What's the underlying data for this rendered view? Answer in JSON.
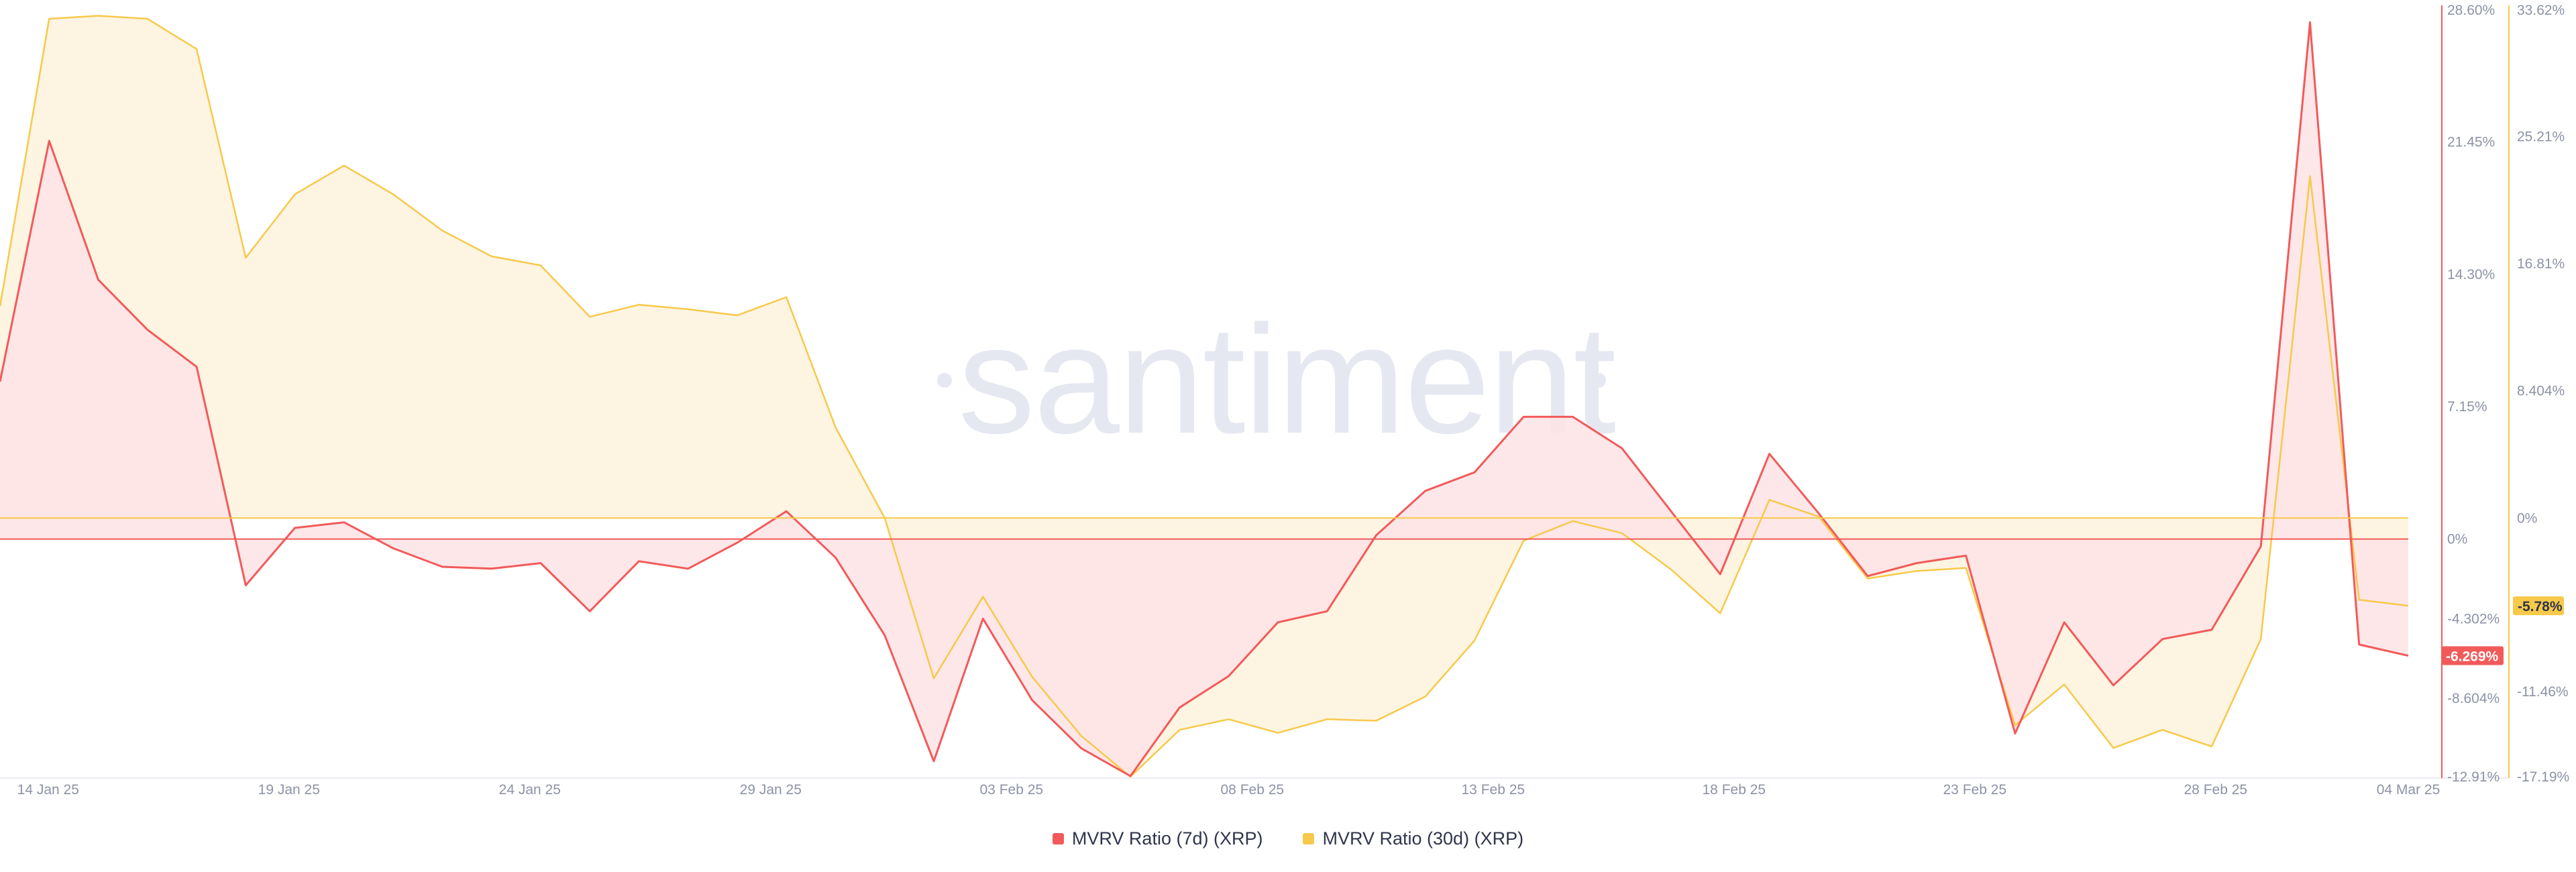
{
  "watermark": "santiment",
  "colors": {
    "series_7d": "#f25a5a",
    "series_30d": "#f7c94a",
    "fill_7d_pos": "#fde3e5",
    "fill_30d_pos": "#fdf4e2",
    "fill_neg_overlap": "#fde4d4",
    "grid": "#ececf2",
    "axis_text": "#8d93a6"
  },
  "legend": {
    "items": [
      {
        "label": "MVRV Ratio (7d) (XRP)",
        "color": "#f25a5a"
      },
      {
        "label": "MVRV Ratio (30d) (XRP)",
        "color": "#f7c94a"
      }
    ]
  },
  "chart_data": {
    "type": "area",
    "x_tick_labels": [
      "14 Jan 25",
      "19 Jan 25",
      "24 Jan 25",
      "29 Jan 25",
      "03 Feb 25",
      "08 Feb 25",
      "13 Feb 25",
      "18 Feb 25",
      "23 Feb 25",
      "28 Feb 25",
      "04 Mar 25"
    ],
    "x_start": "13 Jan 25",
    "x_end": "04 Mar 25",
    "y_left": {
      "series": "MVRV Ratio (7d) (XRP)",
      "range": [
        -12.91,
        28.6
      ],
      "ticks": [
        "28.60%",
        "21.45%",
        "14.30%",
        "7.15%",
        "0%",
        "-4.302%",
        "-8.604%",
        "-12.91%"
      ],
      "current_value_label": "-6.269%"
    },
    "y_right": {
      "series": "MVRV Ratio (30d) (XRP)",
      "range": [
        -17.19,
        33.62
      ],
      "ticks": [
        "33.62%",
        "25.21%",
        "16.81%",
        "8.404%",
        "0%",
        "-11.46%",
        "-17.19%"
      ],
      "current_value_label": "-5.78%"
    },
    "series": [
      {
        "name": "MVRV Ratio (7d) (XRP)",
        "axis": "left",
        "values": [
          8.5,
          21.5,
          14.0,
          11.3,
          9.3,
          -2.5,
          0.6,
          0.9,
          -0.5,
          -1.5,
          -1.6,
          -1.3,
          -3.9,
          -1.2,
          -1.6,
          -0.2,
          1.5,
          -1.0,
          -5.2,
          -12.0,
          -4.3,
          -8.7,
          -11.3,
          -12.8,
          -9.1,
          -7.4,
          -4.5,
          -3.9,
          0.2,
          2.6,
          3.6,
          6.6,
          6.6,
          4.9,
          1.5,
          -1.9,
          4.6,
          1.4,
          -2.0,
          -1.3,
          -0.9,
          -10.5,
          -4.5,
          -7.9,
          -5.4,
          -4.9,
          -0.4,
          27.9,
          -5.7,
          -6.3
        ]
      },
      {
        "name": "MVRV Ratio (30d) (XRP)",
        "axis": "right",
        "values": [
          14.0,
          33.0,
          33.2,
          33.0,
          31.0,
          17.2,
          21.4,
          23.3,
          21.4,
          19.0,
          17.3,
          16.7,
          13.3,
          14.1,
          13.8,
          13.4,
          14.6,
          6.0,
          0.0,
          -10.6,
          -5.2,
          -10.5,
          -14.4,
          -17.1,
          -14.0,
          -13.3,
          -14.2,
          -13.3,
          -13.4,
          -11.8,
          -8.1,
          -1.5,
          -0.2,
          -1.0,
          -3.4,
          -6.3,
          1.2,
          0.1,
          -4.0,
          -3.5,
          -3.3,
          -13.7,
          -11.0,
          -15.2,
          -14.0,
          -15.1,
          -8.0,
          22.6,
          -5.4,
          -5.8
        ]
      }
    ],
    "legend_position": "bottom-center",
    "grid": false
  }
}
